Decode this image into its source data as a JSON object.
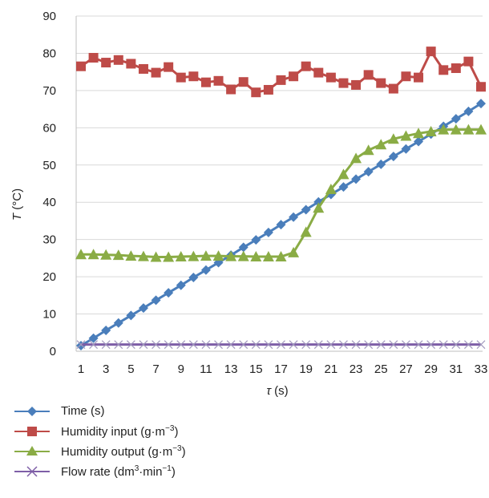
{
  "chart_data": {
    "type": "line",
    "xlabel": "τ (s)",
    "ylabel": "T (°C)",
    "ylim": [
      0,
      90
    ],
    "xlim": [
      1,
      33
    ],
    "y_ticks": [
      0,
      10,
      20,
      30,
      40,
      50,
      60,
      70,
      80,
      90
    ],
    "x_ticks": [
      1,
      3,
      5,
      7,
      9,
      11,
      13,
      15,
      17,
      19,
      21,
      23,
      25,
      27,
      29,
      31,
      33
    ],
    "grid": "horizontal",
    "legend_position": "bottom",
    "x": [
      1,
      2,
      3,
      4,
      5,
      6,
      7,
      8,
      9,
      10,
      11,
      12,
      13,
      14,
      15,
      16,
      17,
      18,
      19,
      20,
      21,
      22,
      23,
      24,
      25,
      26,
      27,
      28,
      29,
      30,
      31,
      32,
      33
    ],
    "series": [
      {
        "name": "Time (s)",
        "color": "#4a7ebb",
        "marker": "diamond",
        "values": [
          1.5,
          3.5,
          5.6,
          7.6,
          9.6,
          11.6,
          13.7,
          15.7,
          17.7,
          19.8,
          21.8,
          23.8,
          25.8,
          27.9,
          29.9,
          31.9,
          34.0,
          36.0,
          38.0,
          40.1,
          42.1,
          44.1,
          46.2,
          48.2,
          50.2,
          52.3,
          54.3,
          56.3,
          58.3,
          60.4,
          62.4,
          64.4,
          66.5
        ]
      },
      {
        "name": "Humidity input (g·m⁻³)",
        "color": "#be4b48",
        "marker": "square",
        "values": [
          76.5,
          78.8,
          77.5,
          78.2,
          77.2,
          75.8,
          74.8,
          76.3,
          73.5,
          73.8,
          72.2,
          72.6,
          70.3,
          72.3,
          69.5,
          70.2,
          72.8,
          73.8,
          76.5,
          74.8,
          73.5,
          72.0,
          71.5,
          74.2,
          72.0,
          70.5,
          73.8,
          73.5,
          80.5,
          75.5,
          76.0,
          77.8,
          71.0
        ]
      },
      {
        "name": "Humidity output (g·m⁻³)",
        "color": "#8aac45",
        "marker": "triangle",
        "values": [
          26.0,
          26.0,
          25.9,
          25.8,
          25.6,
          25.5,
          25.3,
          25.3,
          25.4,
          25.5,
          25.6,
          25.6,
          25.5,
          25.5,
          25.4,
          25.4,
          25.4,
          26.5,
          32.0,
          38.5,
          43.5,
          47.5,
          51.8,
          54.0,
          55.5,
          57.0,
          57.8,
          58.5,
          59.0,
          59.5,
          59.5,
          59.5,
          59.5
        ]
      },
      {
        "name": "Flow rate (dm³·min⁻¹)",
        "color": "#7e5ea7",
        "marker": "x",
        "values": [
          1.8,
          1.8,
          1.8,
          1.8,
          1.8,
          1.8,
          1.8,
          1.8,
          1.8,
          1.8,
          1.8,
          1.8,
          1.8,
          1.8,
          1.8,
          1.8,
          1.8,
          1.8,
          1.8,
          1.8,
          1.8,
          1.8,
          1.8,
          1.8,
          1.8,
          1.8,
          1.8,
          1.8,
          1.8,
          1.8,
          1.8,
          1.8,
          1.8
        ]
      }
    ]
  },
  "legend": {
    "items": [
      {
        "label": "Time (s)",
        "sup": "",
        "suffix": ""
      },
      {
        "label": "Humidity input (g·m",
        "sup": "−3",
        "suffix": ")"
      },
      {
        "label": "Humidity output (g·m",
        "sup": "−3",
        "suffix": ")"
      },
      {
        "label": "Flow rate (dm",
        "sup": "3",
        "suffix": "·min",
        "sup2": "−1",
        "suffix2": ")"
      }
    ]
  }
}
